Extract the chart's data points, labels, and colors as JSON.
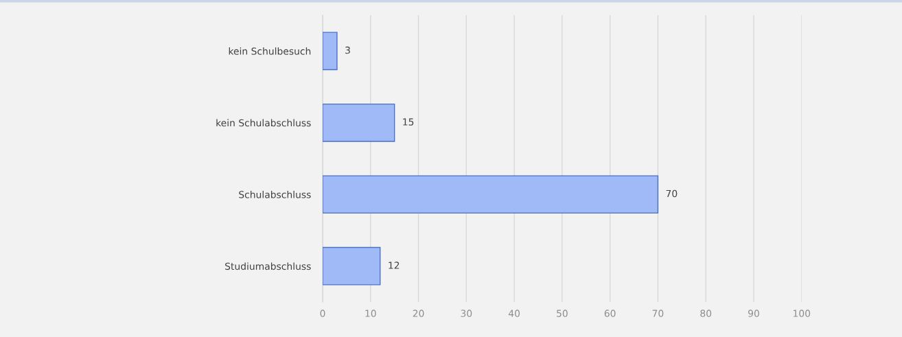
{
  "chart_data": {
    "type": "bar",
    "orientation": "horizontal",
    "categories": [
      "kein Schulbesuch",
      "kein Schulabschluss",
      "Schulabschluss",
      "Studiumabschluss"
    ],
    "values": [
      3,
      15,
      70,
      12
    ],
    "color": "#9fbaf7",
    "xlim": [
      0,
      100
    ],
    "xticks": [
      0,
      10,
      20,
      30,
      40,
      50,
      60,
      70,
      80,
      90,
      100
    ],
    "grid": "x",
    "data_labels": true
  }
}
